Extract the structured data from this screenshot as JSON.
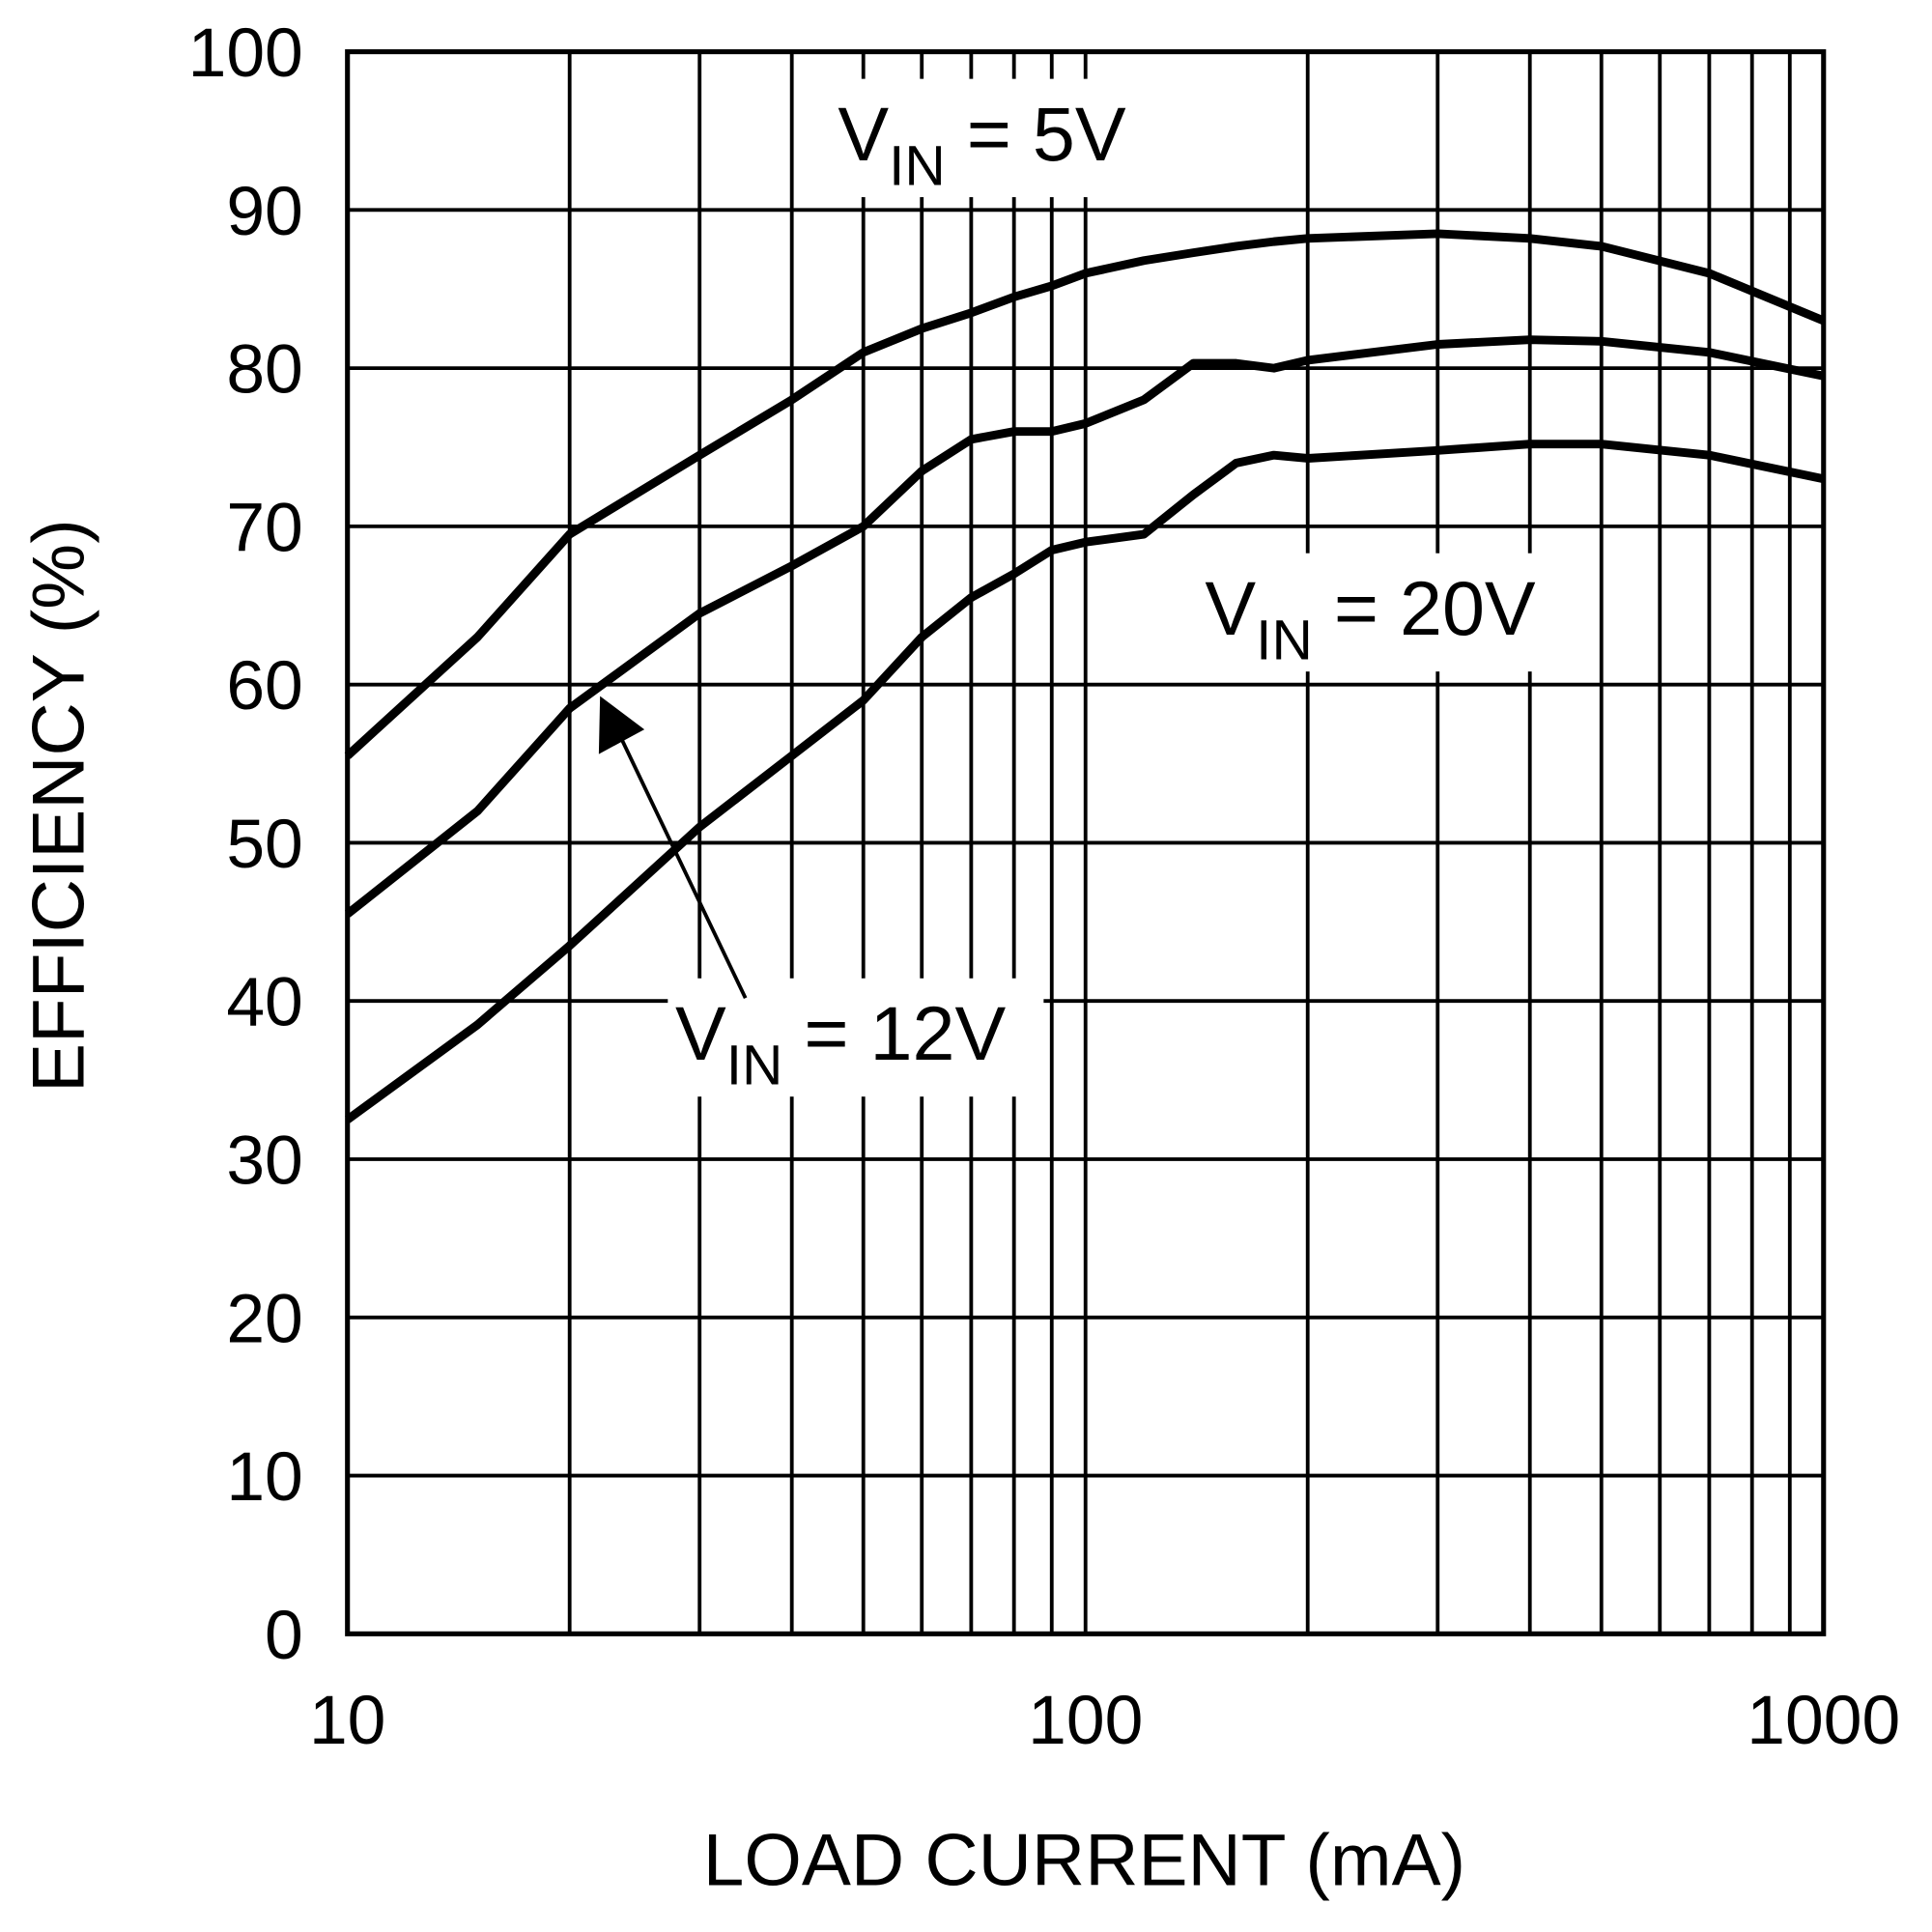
{
  "chart_data": {
    "type": "line",
    "xlabel": "LOAD CURRENT (mA)",
    "ylabel": "EFFICIENCY (%)",
    "xscale": "log",
    "grid": true,
    "color": "#000000",
    "xlim": [
      10,
      1000
    ],
    "xticks": [
      10,
      100,
      1000
    ],
    "xminorticks": [
      20,
      30,
      40,
      50,
      60,
      70,
      80,
      90,
      200,
      300,
      400,
      500,
      600,
      700,
      800,
      900
    ],
    "ylim": [
      0,
      100
    ],
    "yticks": [
      0,
      10,
      20,
      30,
      40,
      50,
      60,
      70,
      80,
      90,
      100
    ],
    "x": [
      10,
      15,
      20,
      30,
      40,
      50,
      60,
      70,
      80,
      90,
      100,
      120,
      140,
      160,
      180,
      200,
      300,
      400,
      500,
      700,
      1000
    ],
    "series": [
      {
        "values": [
          55.5,
          63,
          69.5,
          74.5,
          78,
          81,
          82.5,
          83.5,
          84.5,
          85.2,
          86,
          86.8,
          87.3,
          87.7,
          88,
          88.2,
          88.5,
          88.2,
          87.7,
          86,
          83
        ]
      },
      {
        "values": [
          45.5,
          52,
          58.5,
          64.5,
          67.5,
          70,
          73.5,
          75.5,
          76,
          76,
          76.5,
          78,
          80.3,
          80.3,
          80,
          80.5,
          81.5,
          81.8,
          81.7,
          81,
          79.5
        ]
      },
      {
        "values": [
          32.5,
          38.5,
          43.5,
          51,
          55.5,
          59,
          63,
          65.5,
          67,
          68.5,
          69,
          69.5,
          72,
          74,
          74.5,
          74.3,
          74.8,
          75.2,
          75.2,
          74.5,
          73
        ]
      }
    ],
    "annotations": [
      {
        "text": "V",
        "sub": "IN",
        "rest": " = 5V"
      },
      {
        "text": "V",
        "sub": "IN",
        "rest": " = 12V"
      },
      {
        "text": "V",
        "sub": "IN",
        "rest": " = 20V"
      }
    ]
  }
}
